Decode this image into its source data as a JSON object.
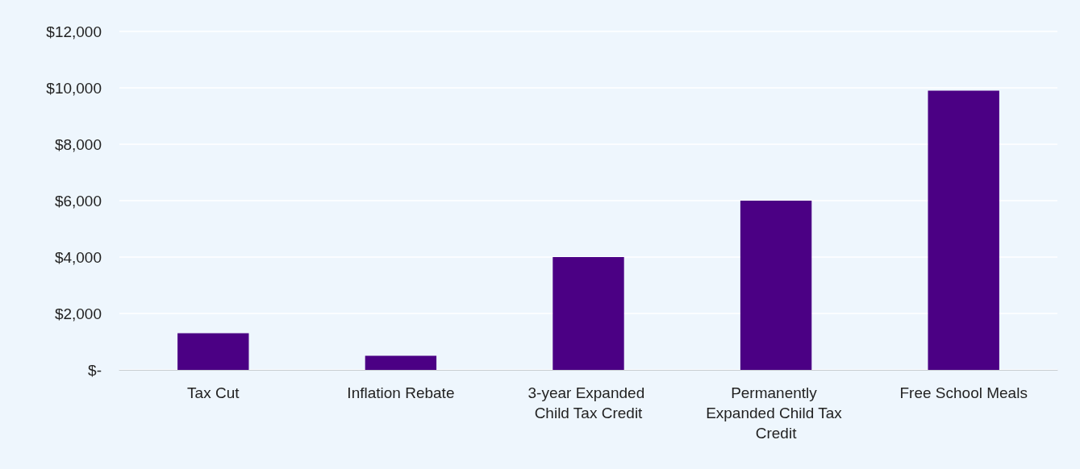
{
  "chart_data": {
    "type": "bar",
    "categories": [
      "Tax Cut",
      "Inflation Rebate",
      "3-year Expanded Child Tax Credit",
      "Permanently Expanded Child Tax Credit",
      "Free School Meals"
    ],
    "values": [
      1300,
      500,
      4000,
      6000,
      9900
    ],
    "color": "#4b0084",
    "ylim": [
      0,
      12000
    ],
    "yticks": [
      {
        "value": 0,
        "label": "$-"
      },
      {
        "value": 2000,
        "label": "$2,000"
      },
      {
        "value": 4000,
        "label": "$4,000"
      },
      {
        "value": 6000,
        "label": "$6,000"
      },
      {
        "value": 8000,
        "label": "$8,000"
      },
      {
        "value": 10000,
        "label": "$10,000"
      },
      {
        "value": 12000,
        "label": "$12,000"
      }
    ],
    "grid": "y"
  }
}
